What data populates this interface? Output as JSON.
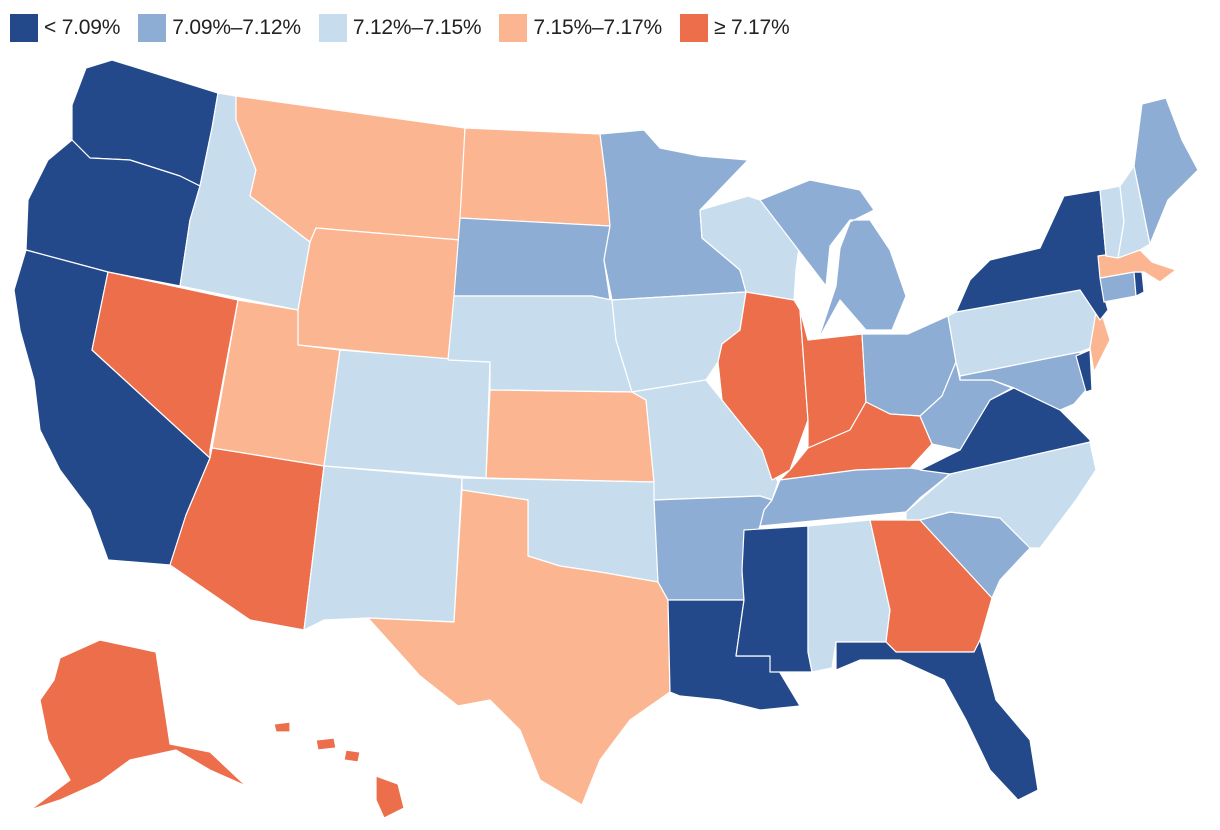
{
  "legend": {
    "items": [
      {
        "key": "c1",
        "label": "< 7.09%",
        "color": "#23498b"
      },
      {
        "key": "c2",
        "label": "7.09%–7.12%",
        "color": "#8eadd4"
      },
      {
        "key": "c3",
        "label": "7.12%–7.15%",
        "color": "#c7ddee"
      },
      {
        "key": "c4",
        "label": "7.15%–7.17%",
        "color": "#fbb691"
      },
      {
        "key": "c5",
        "label": "≥ 7.17%",
        "color": "#ec6e4b"
      }
    ]
  },
  "states": {
    "WA": "c1",
    "OR": "c1",
    "CA": "c1",
    "NY": "c1",
    "VA": "c1",
    "LA": "c1",
    "MS": "c1",
    "FL": "c1",
    "DE": "c1",
    "RI": "c1",
    "SD": "c2",
    "MN": "c2",
    "MI": "c2",
    "OH": "c2",
    "WV": "c2",
    "MD": "c2",
    "TN": "c2",
    "AR": "c2",
    "SC": "c2",
    "ME": "c2",
    "CT": "c2",
    "ID": "c3",
    "CO": "c3",
    "NM": "c3",
    "NE": "c3",
    "OK": "c3",
    "IA": "c3",
    "MO": "c3",
    "WI": "c3",
    "AL": "c3",
    "NC": "c3",
    "PA": "c3",
    "VT": "c3",
    "NH": "c3",
    "MT": "c4",
    "WY": "c4",
    "UT": "c4",
    "ND": "c4",
    "KS": "c4",
    "TX": "c4",
    "MA": "c4",
    "NJ": "c4",
    "NV": "c5",
    "AZ": "c5",
    "IL": "c5",
    "IN": "c5",
    "KY": "c5",
    "GA": "c5",
    "AK": "c5",
    "HI": "c5"
  }
}
